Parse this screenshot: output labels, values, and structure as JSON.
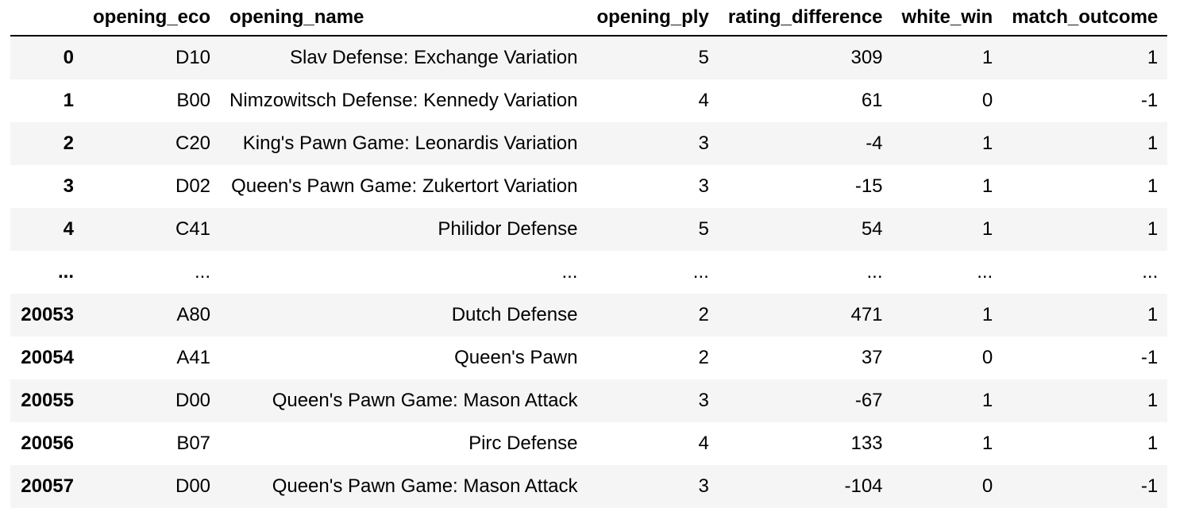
{
  "app": {
    "context": "notebook-dataframe-output"
  },
  "colors": {
    "stripe_row_background": "#f5f5f5",
    "header_rule": "#000000",
    "text": "#000000",
    "background": "#ffffff"
  },
  "table": {
    "columns": [
      "",
      "opening_eco",
      "opening_name",
      "opening_ply",
      "rating_difference",
      "white_win",
      "match_outcome"
    ],
    "rows": [
      {
        "index": "0",
        "cells": [
          "D10",
          "Slav Defense: Exchange Variation",
          "5",
          "309",
          "1",
          "1"
        ]
      },
      {
        "index": "1",
        "cells": [
          "B00",
          "Nimzowitsch Defense: Kennedy Variation",
          "4",
          "61",
          "0",
          "-1"
        ]
      },
      {
        "index": "2",
        "cells": [
          "C20",
          "King's Pawn Game: Leonardis Variation",
          "3",
          "-4",
          "1",
          "1"
        ]
      },
      {
        "index": "3",
        "cells": [
          "D02",
          "Queen's Pawn Game: Zukertort Variation",
          "3",
          "-15",
          "1",
          "1"
        ]
      },
      {
        "index": "4",
        "cells": [
          "C41",
          "Philidor Defense",
          "5",
          "54",
          "1",
          "1"
        ]
      },
      {
        "index": "...",
        "cells": [
          "...",
          "...",
          "...",
          "...",
          "...",
          "..."
        ]
      },
      {
        "index": "20053",
        "cells": [
          "A80",
          "Dutch Defense",
          "2",
          "471",
          "1",
          "1"
        ]
      },
      {
        "index": "20054",
        "cells": [
          "A41",
          "Queen's Pawn",
          "2",
          "37",
          "0",
          "-1"
        ]
      },
      {
        "index": "20055",
        "cells": [
          "D00",
          "Queen's Pawn Game: Mason Attack",
          "3",
          "-67",
          "1",
          "1"
        ]
      },
      {
        "index": "20056",
        "cells": [
          "B07",
          "Pirc Defense",
          "4",
          "133",
          "1",
          "1"
        ]
      },
      {
        "index": "20057",
        "cells": [
          "D00",
          "Queen's Pawn Game: Mason Attack",
          "3",
          "-104",
          "0",
          "-1"
        ]
      }
    ]
  }
}
